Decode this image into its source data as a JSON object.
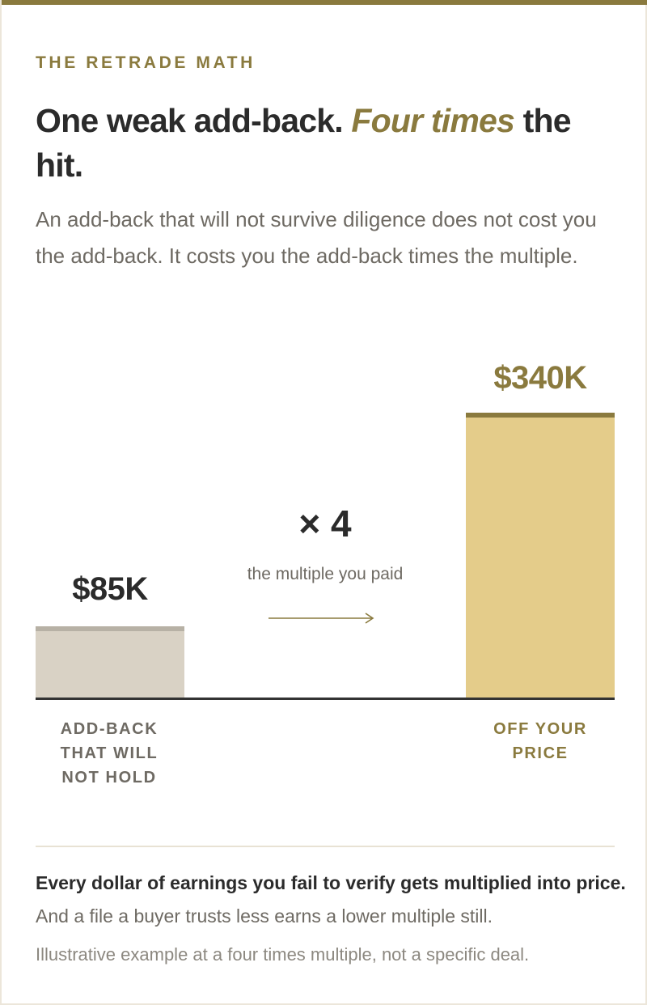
{
  "eyebrow": "THE RETRADE MATH",
  "headline": {
    "part1": "One weak add-back.",
    "emphasis": "Four times",
    "part2": "the hit."
  },
  "subtitle": "An add-back that will not survive diligence does not cost you the add-back. It costs you the add-back times the multiple.",
  "colors": {
    "accent": "#8a7a3e",
    "bar_left": "#d9d2c5",
    "bar_left_cap": "#b7b1a5",
    "bar_right": "#e4cc8a",
    "bar_right_cap": "#8a7a3e",
    "baseline": "#333333"
  },
  "chart_data": {
    "type": "bar",
    "categories": [
      "ADD-BACK THAT WILL NOT HOLD",
      "OFF YOUR PRICE"
    ],
    "values": [
      85,
      340
    ],
    "value_labels": [
      "$85K",
      "$340K"
    ],
    "unit": "$K",
    "ylim": [
      0,
      340
    ],
    "grid": false,
    "multiplier": {
      "label": "× 4",
      "caption": "the multiple you paid",
      "value": 4
    }
  },
  "footnote": {
    "bold": "Every dollar of earnings you fail to verify gets multiplied into price.",
    "rest": "And a file a buyer trusts less earns a lower multiple still."
  },
  "disclaimer": "Illustrative example at a four times multiple, not a specific deal."
}
